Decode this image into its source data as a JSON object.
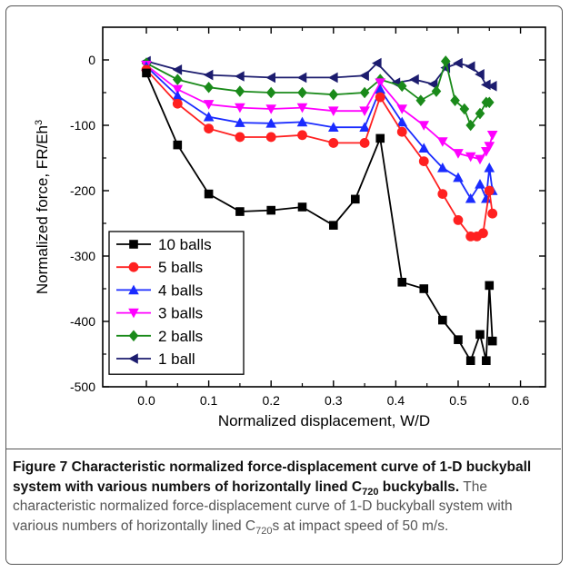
{
  "chart_data": {
    "type": "line",
    "xlabel": "Normalized displacement, W/D",
    "ylabel": "Normalized force, FR/Eh",
    "ylabel_superscript": "3",
    "xlim": [
      -0.07,
      0.64
    ],
    "ylim": [
      -500,
      50
    ],
    "x_ticks": [
      "0.0",
      "0.1",
      "0.2",
      "0.3",
      "0.4",
      "0.5",
      "0.6"
    ],
    "y_ticks": [
      "0",
      "-100",
      "-200",
      "-300",
      "-400",
      "-500"
    ],
    "legend_position": "lower-left",
    "series": [
      {
        "name": "10 balls",
        "color": "#000000",
        "marker": "square",
        "x": [
          0.0,
          0.05,
          0.1,
          0.15,
          0.2,
          0.25,
          0.3,
          0.335,
          0.375,
          0.41,
          0.445,
          0.475,
          0.5,
          0.52,
          0.535,
          0.545,
          0.55,
          0.555
        ],
        "y": [
          -20,
          -130,
          -205,
          -232,
          -230,
          -225,
          -253,
          -213,
          -120,
          -340,
          -350,
          -398,
          -428,
          -460,
          -420,
          -460,
          -345,
          -430
        ]
      },
      {
        "name": "5 balls",
        "color": "#ff2020",
        "marker": "circle",
        "x": [
          0.0,
          0.05,
          0.1,
          0.15,
          0.2,
          0.25,
          0.3,
          0.35,
          0.375,
          0.41,
          0.445,
          0.475,
          0.5,
          0.52,
          0.53,
          0.54,
          0.55,
          0.555
        ],
        "y": [
          -15,
          -67,
          -105,
          -118,
          -118,
          -115,
          -127,
          -127,
          -57,
          -110,
          -155,
          -205,
          -245,
          -270,
          -270,
          -265,
          -200,
          -235
        ]
      },
      {
        "name": "4 balls",
        "color": "#1a2bff",
        "marker": "triangle-up",
        "x": [
          0.0,
          0.05,
          0.1,
          0.15,
          0.2,
          0.25,
          0.3,
          0.35,
          0.375,
          0.41,
          0.445,
          0.475,
          0.5,
          0.52,
          0.535,
          0.545,
          0.55,
          0.555
        ],
        "y": [
          -10,
          -55,
          -87,
          -96,
          -97,
          -95,
          -103,
          -103,
          -45,
          -95,
          -135,
          -165,
          -180,
          -212,
          -190,
          -212,
          -165,
          -200
        ]
      },
      {
        "name": "3 balls",
        "color": "#ff00ff",
        "marker": "triangle-down",
        "x": [
          0.0,
          0.05,
          0.1,
          0.15,
          0.2,
          0.25,
          0.3,
          0.35,
          0.375,
          0.41,
          0.445,
          0.475,
          0.5,
          0.52,
          0.535,
          0.545,
          0.55,
          0.555
        ],
        "y": [
          -8,
          -45,
          -68,
          -73,
          -75,
          -73,
          -78,
          -78,
          -35,
          -75,
          -100,
          -125,
          -143,
          -148,
          -152,
          -140,
          -132,
          -115
        ]
      },
      {
        "name": "2 balls",
        "color": "#1a8a1a",
        "marker": "diamond",
        "x": [
          0.0,
          0.05,
          0.1,
          0.15,
          0.2,
          0.25,
          0.3,
          0.35,
          0.375,
          0.41,
          0.44,
          0.465,
          0.48,
          0.495,
          0.51,
          0.52,
          0.535,
          0.545,
          0.55
        ],
        "y": [
          -5,
          -30,
          -42,
          -48,
          -50,
          -50,
          -53,
          -50,
          -30,
          -40,
          -62,
          -48,
          -2,
          -62,
          -75,
          -100,
          -82,
          -65,
          -65
        ]
      },
      {
        "name": "1 ball",
        "color": "#1c1c6e",
        "marker": "triangle-left",
        "x": [
          0.0,
          0.05,
          0.1,
          0.15,
          0.2,
          0.25,
          0.3,
          0.35,
          0.37,
          0.4,
          0.43,
          0.46,
          0.48,
          0.5,
          0.52,
          0.535,
          0.545,
          0.555
        ],
        "y": [
          -2,
          -15,
          -23,
          -25,
          -27,
          -27,
          -27,
          -24,
          -5,
          -35,
          -30,
          -37,
          -12,
          -5,
          -10,
          -22,
          -38,
          -40
        ]
      }
    ]
  },
  "caption": {
    "figure_label": "Figure 7",
    "title_part1": " Characteristic normalized force-displacement curve of 1-D buckyball system with various numbers of horizontally lined C",
    "title_sub": "720",
    "title_part2": " buckyballs.",
    "desc_part1": " The characteristic normalized force-displacement curve of 1-D buckyball system with various numbers of horizontally lined C",
    "desc_sub": "720",
    "desc_part2": "s at impact speed of 50 m/s."
  }
}
